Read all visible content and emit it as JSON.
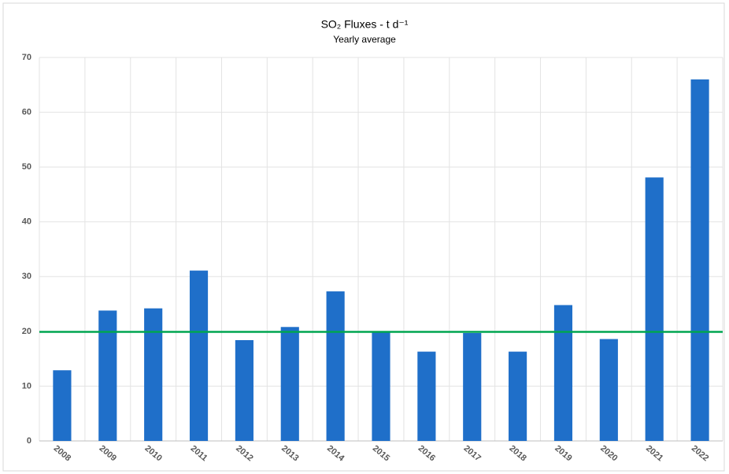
{
  "chart_data": {
    "type": "bar",
    "title": "SO₂ Fluxes - t d⁻¹",
    "subtitle": "Yearly average",
    "categories": [
      "2008",
      "2009",
      "2010",
      "2011",
      "2012",
      "2013",
      "2014",
      "2015",
      "2016",
      "2017",
      "2018",
      "2019",
      "2020",
      "2021",
      "2022"
    ],
    "values": [
      12.9,
      23.8,
      24.2,
      31.1,
      18.4,
      20.8,
      27.3,
      19.9,
      16.3,
      19.7,
      16.3,
      24.8,
      18.6,
      48.1,
      66.0
    ],
    "color": "#1f6fc9",
    "reference_line": {
      "value": 19.9,
      "color": "#00a651"
    },
    "ylim": [
      0,
      70
    ],
    "yticks": [
      0,
      10,
      20,
      30,
      40,
      50,
      60,
      70
    ],
    "grid": true
  }
}
